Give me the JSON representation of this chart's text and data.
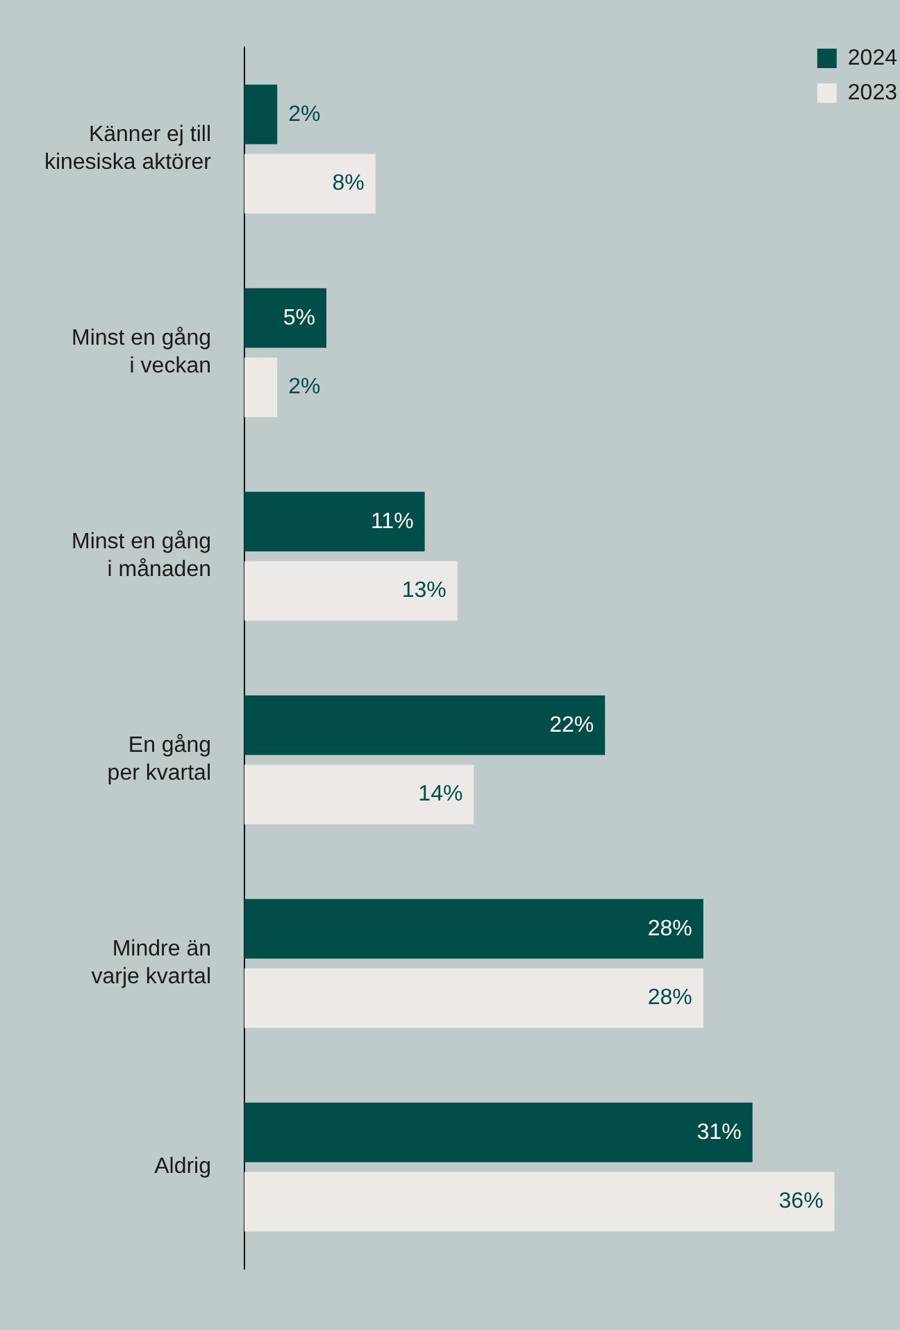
{
  "chart_data": {
    "type": "bar",
    "orientation": "horizontal",
    "categories": [
      "Känner ej till\nkinesiska aktörer",
      "Minst en gång\ni veckan",
      "Minst en gång\ni månaden",
      "En gång\nper kvartal",
      "Mindre än\nvarje kvartal",
      "Aldrig"
    ],
    "series": [
      {
        "name": "2024",
        "color": "#004d4a",
        "values": [
          2,
          5,
          11,
          22,
          28,
          31
        ],
        "value_labels": [
          "2%",
          "5%",
          "11%",
          "22%",
          "28%",
          "31%"
        ]
      },
      {
        "name": "2023",
        "color": "#ece9e6",
        "values": [
          8,
          2,
          13,
          14,
          28,
          36
        ],
        "value_labels": [
          "8%",
          "2%",
          "13%",
          "14%",
          "28%",
          "36%"
        ]
      }
    ],
    "legend": "top right"
  }
}
